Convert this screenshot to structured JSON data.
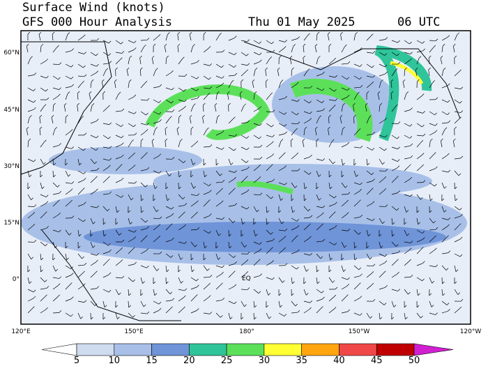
{
  "header": {
    "title": "Surface Wind (knots)",
    "subtitle": "GFS 000 Hour Analysis",
    "date": "Thu 01 May 2025",
    "time": "06 UTC"
  },
  "map": {
    "lat_labels": [
      "60°N",
      "45°N",
      "30°N",
      "15°N",
      "0°"
    ],
    "lon_labels": [
      "120°E",
      "150°E",
      "180°",
      "150°W",
      "120°W"
    ],
    "equator_label": "EQ"
  },
  "colorbar": {
    "ticks": [
      5,
      10,
      15,
      20,
      25,
      30,
      35,
      40,
      45,
      50
    ],
    "colors": [
      "#ffffff",
      "#cfdcf0",
      "#a8c0e8",
      "#6f94d8",
      "#2fc49a",
      "#5ce05a",
      "#ffff33",
      "#ffa510",
      "#f04848",
      "#c00000",
      "#d020d0"
    ]
  }
}
